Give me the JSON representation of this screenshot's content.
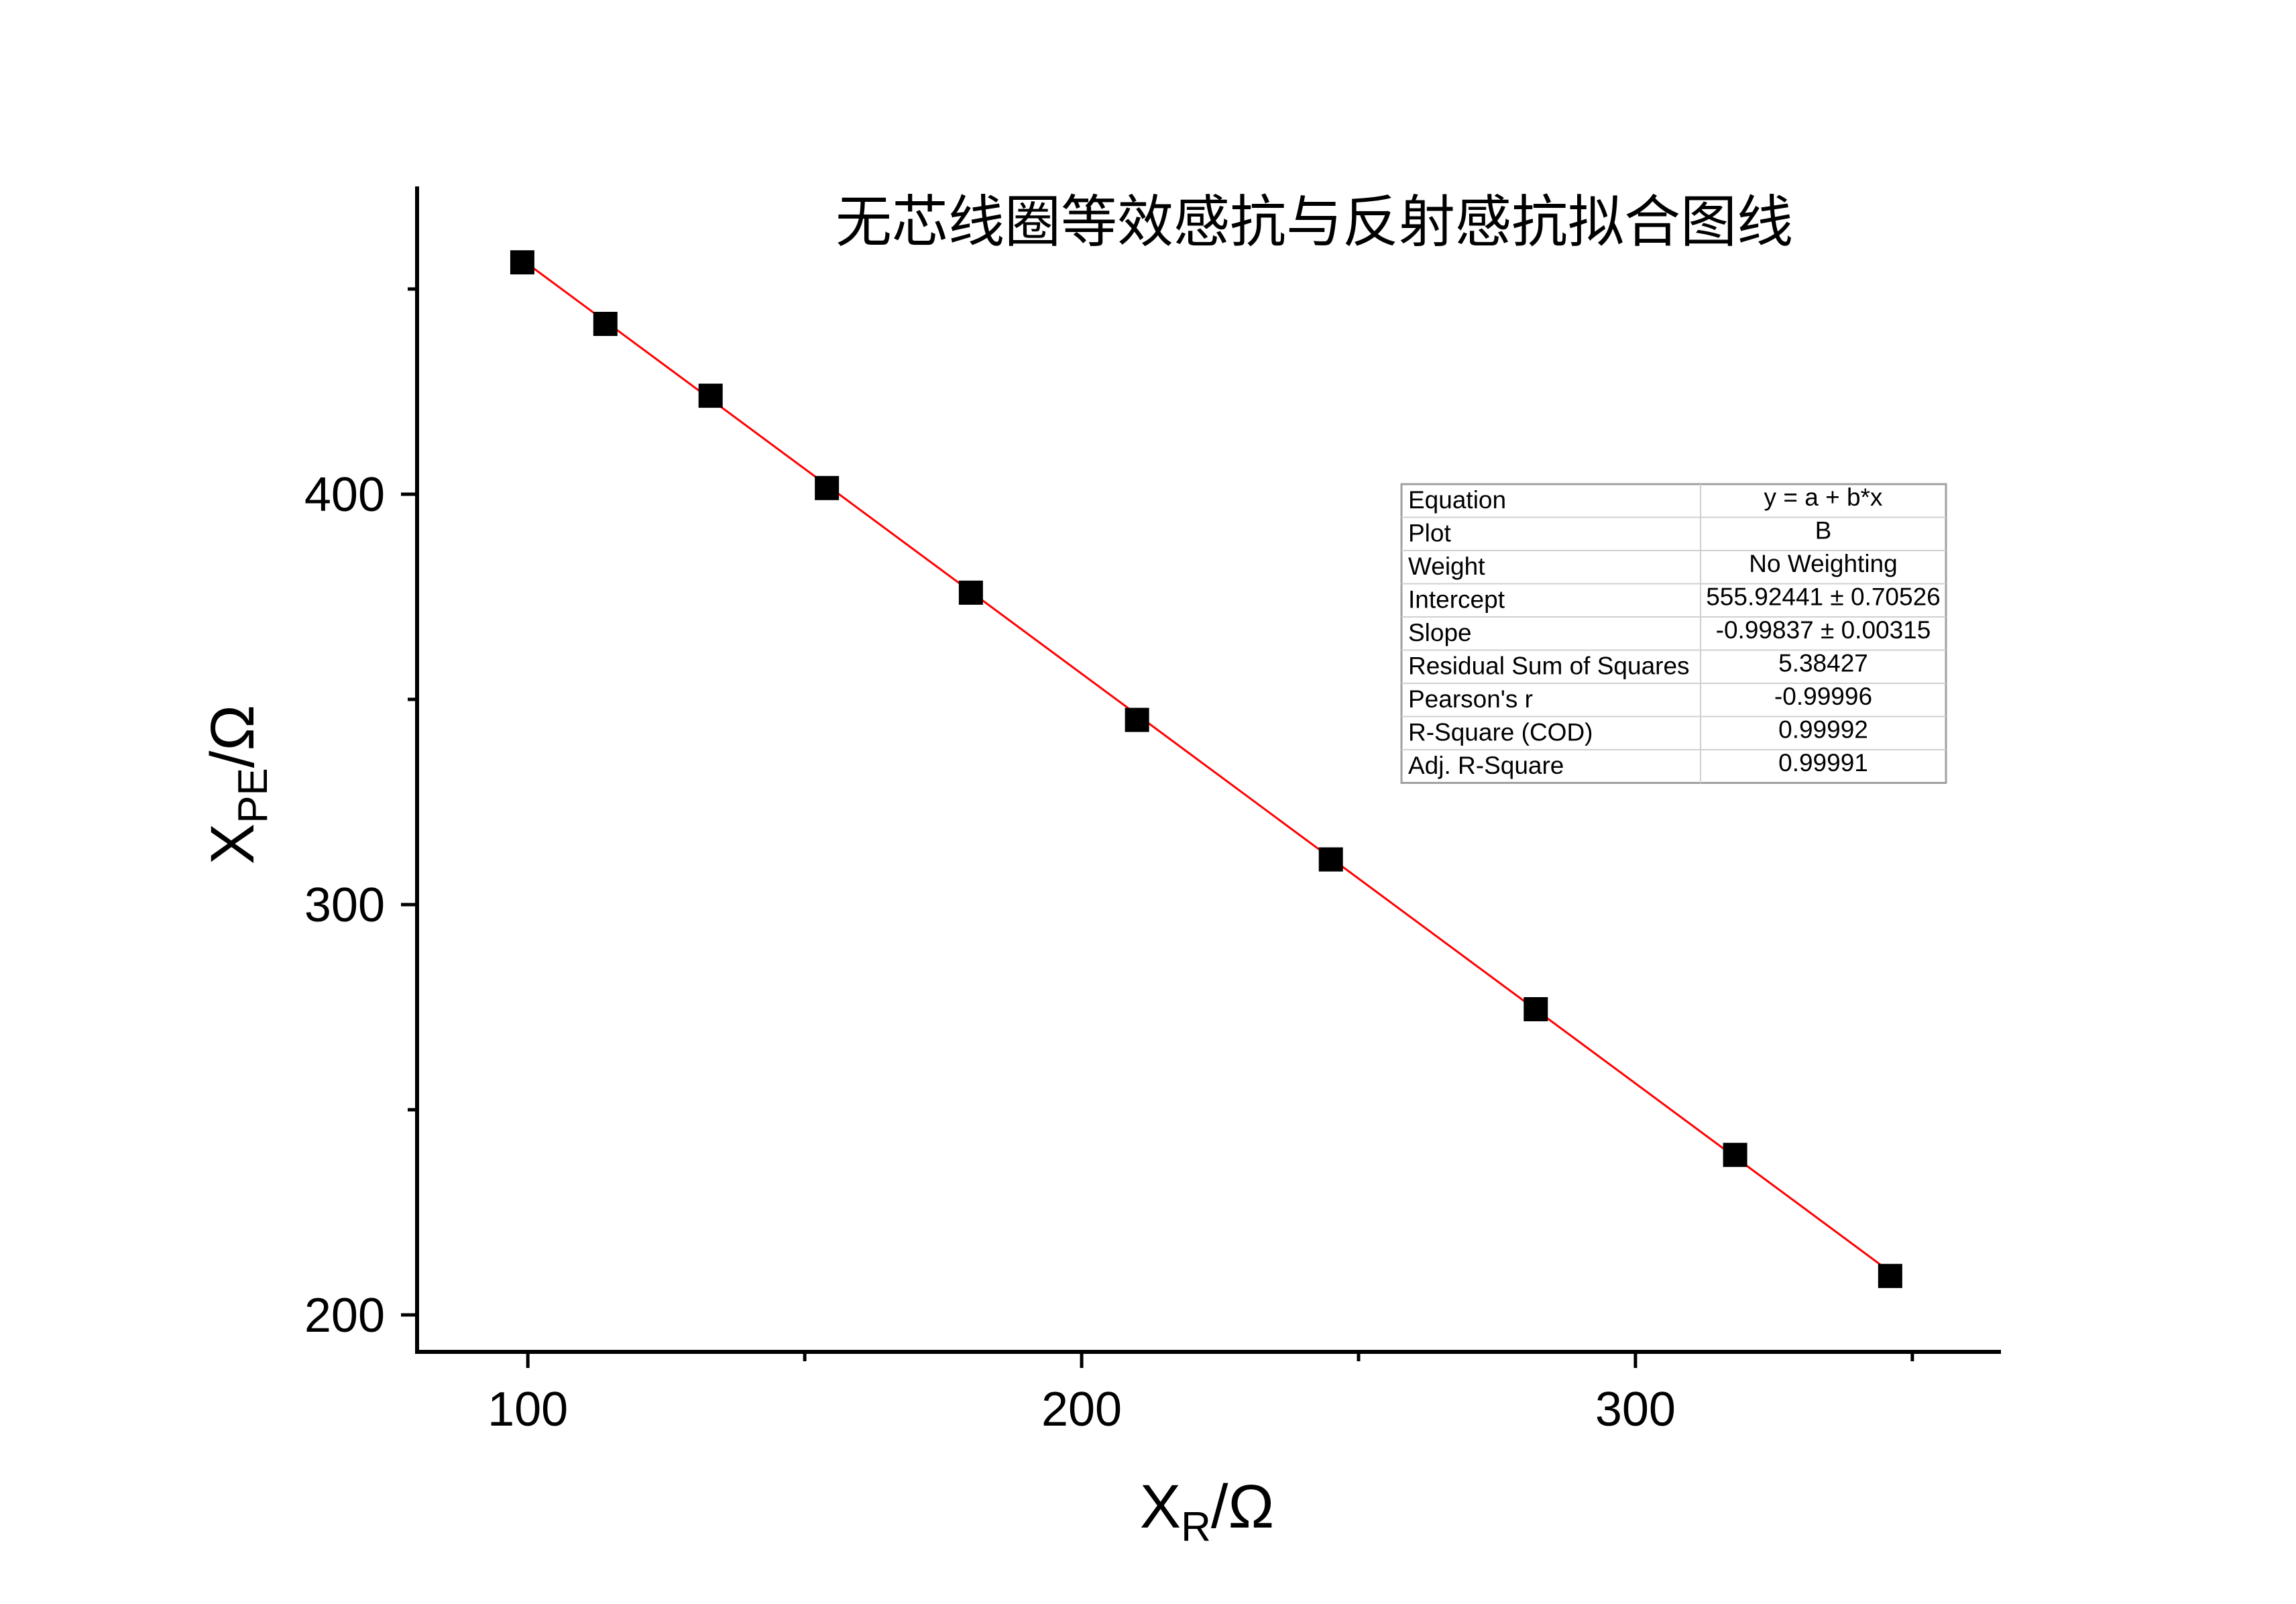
{
  "chart_data": {
    "type": "scatter",
    "title": "无芯线圈等效感抗与反射感抗拟合图线",
    "xlabel": "X",
    "xlabel_sub": "R",
    "xlabel_unit": "/Ω",
    "ylabel": "X",
    "ylabel_sub": "PE",
    "ylabel_unit": "/Ω",
    "xlim": [
      80,
      366
    ],
    "ylim": [
      191,
      475
    ],
    "x_ticks": [
      100,
      200,
      300
    ],
    "x_minor_ticks": [
      150,
      250,
      350
    ],
    "y_ticks": [
      200,
      300,
      400
    ],
    "y_minor_ticks": [
      250,
      350,
      450
    ],
    "grid": false,
    "series": [
      {
        "marker": "square",
        "color": "#000000",
        "x": [
          99,
          114,
          133,
          154,
          180,
          210,
          245,
          282,
          318,
          346
        ],
        "y": [
          456.5,
          441.5,
          424,
          401.5,
          376,
          345,
          311,
          274.5,
          239,
          209.5
        ]
      }
    ],
    "fit": {
      "color": "#ff0000",
      "intercept": 555.92441,
      "slope": -0.99837,
      "x_range": [
        99,
        346
      ]
    },
    "stats_table": [
      [
        "Equation",
        "y = a + b*x"
      ],
      [
        "Plot",
        "B"
      ],
      [
        "Weight",
        "No Weighting"
      ],
      [
        "Intercept",
        "555.92441 ± 0.70526"
      ],
      [
        "Slope",
        "-0.99837 ± 0.00315"
      ],
      [
        "Residual Sum of Squares",
        "5.38427"
      ],
      [
        "Pearson's r",
        "-0.99996"
      ],
      [
        "R-Square (COD)",
        "0.99992"
      ],
      [
        "Adj. R-Square",
        "0.99991"
      ]
    ]
  }
}
